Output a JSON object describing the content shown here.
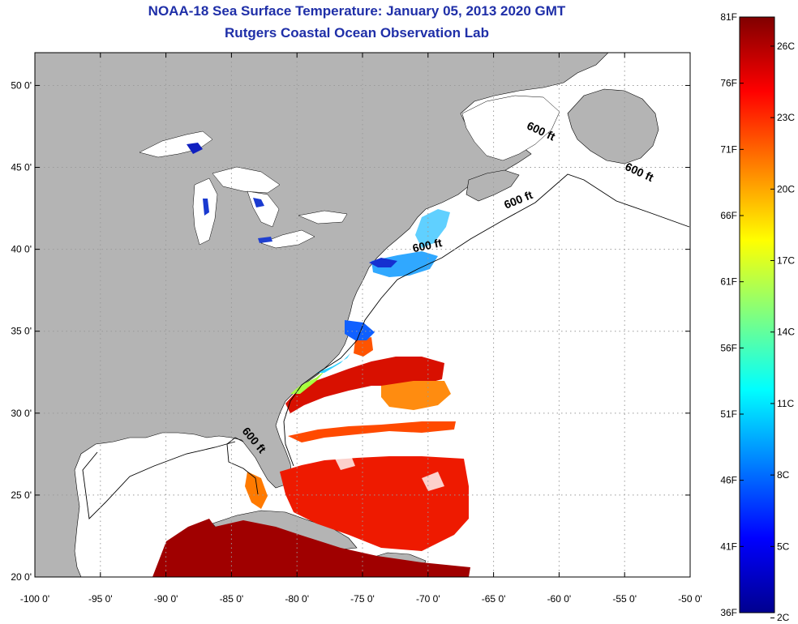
{
  "header": {
    "title": "NOAA-18 Sea Surface Temperature:  January 05, 2013 2020 GMT",
    "subtitle": "Rutgers Coastal Ocean Observation Lab"
  },
  "map": {
    "lon_range": [
      -100,
      -50
    ],
    "lat_range": [
      20,
      52
    ],
    "lon_ticks": [
      {
        "value": -100,
        "label": "-100 0'"
      },
      {
        "value": -95,
        "label": "-95 0'"
      },
      {
        "value": -90,
        "label": "-90 0'"
      },
      {
        "value": -85,
        "label": "-85 0'"
      },
      {
        "value": -80,
        "label": "-80 0'"
      },
      {
        "value": -75,
        "label": "-75 0'"
      },
      {
        "value": -70,
        "label": "-70 0'"
      },
      {
        "value": -65,
        "label": "-65 0'"
      },
      {
        "value": -60,
        "label": "-60 0'"
      },
      {
        "value": -55,
        "label": "-55 0'"
      },
      {
        "value": -50,
        "label": "-50 0'"
      }
    ],
    "lat_ticks": [
      {
        "value": 20,
        "label": "20 0'"
      },
      {
        "value": 25,
        "label": "25 0'"
      },
      {
        "value": 30,
        "label": "30 0'"
      },
      {
        "value": 35,
        "label": "35 0'"
      },
      {
        "value": 40,
        "label": "40 0'"
      },
      {
        "value": 45,
        "label": "45 0'"
      },
      {
        "value": 50,
        "label": "50 0'"
      }
    ],
    "contour_labels": [
      {
        "text": "600 ft",
        "lon": -61.5,
        "lat": 47.0
      },
      {
        "text": "600 ft",
        "lon": -54.0,
        "lat": 44.5
      },
      {
        "text": "600 ft",
        "lon": -63.0,
        "lat": 42.8
      },
      {
        "text": "600 ft",
        "lon": -70.0,
        "lat": 40.0
      },
      {
        "text": "600 ft",
        "lon": -83.5,
        "lat": 28.2
      }
    ],
    "colors": {
      "land": "#b4b4b4",
      "ocean_nodata": "#ffffff",
      "grid": "#9a9a9a"
    }
  },
  "colorbar": {
    "f_labels": [
      {
        "value": 81,
        "label": "81F"
      },
      {
        "value": 76,
        "label": "76F"
      },
      {
        "value": 71,
        "label": "71F"
      },
      {
        "value": 66,
        "label": "66F"
      },
      {
        "value": 61,
        "label": "61F"
      },
      {
        "value": 56,
        "label": "56F"
      },
      {
        "value": 51,
        "label": "51F"
      },
      {
        "value": 46,
        "label": "46F"
      },
      {
        "value": 41,
        "label": "41F"
      },
      {
        "value": 36,
        "label": "36F"
      }
    ],
    "c_labels": [
      {
        "value": 26,
        "label": "26C"
      },
      {
        "value": 23,
        "label": "23C"
      },
      {
        "value": 20,
        "label": "20C"
      },
      {
        "value": 17,
        "label": "17C"
      },
      {
        "value": 14,
        "label": "14C"
      },
      {
        "value": 11,
        "label": "11C"
      },
      {
        "value": 8,
        "label": "8C"
      },
      {
        "value": 5,
        "label": "5C"
      },
      {
        "value": 2,
        "label": "2C"
      }
    ],
    "range_f": [
      36,
      81
    ],
    "colormap": "jet"
  }
}
